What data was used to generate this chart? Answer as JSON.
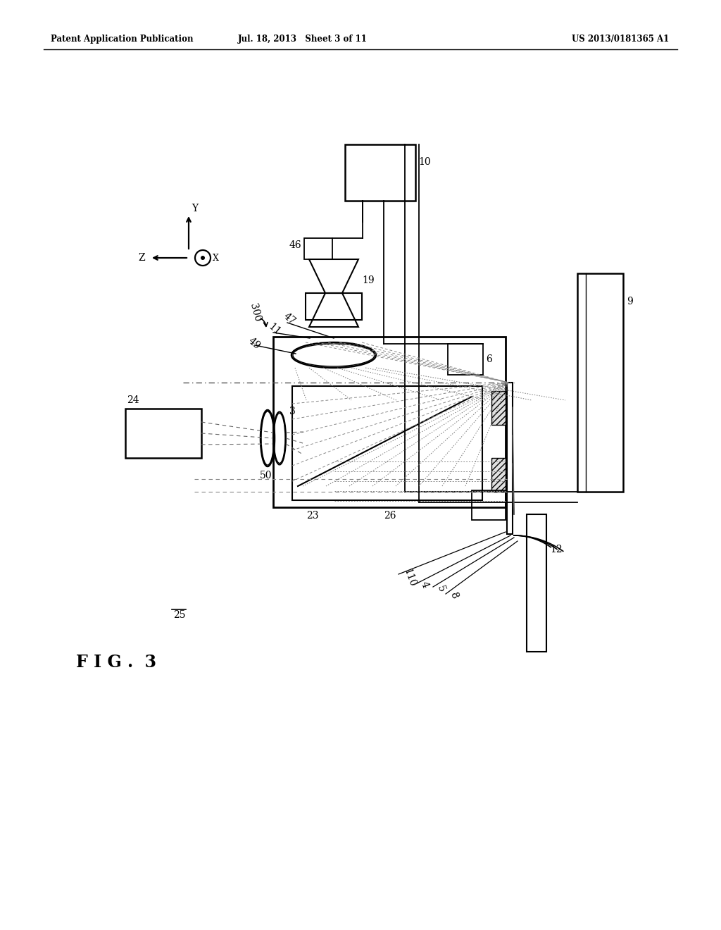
{
  "header_left": "Patent Application Publication",
  "header_mid": "Jul. 18, 2013   Sheet 3 of 11",
  "header_right": "US 2013/0181365 A1",
  "background": "#ffffff",
  "lc": "#000000",
  "fig_label": "FIG. 3"
}
